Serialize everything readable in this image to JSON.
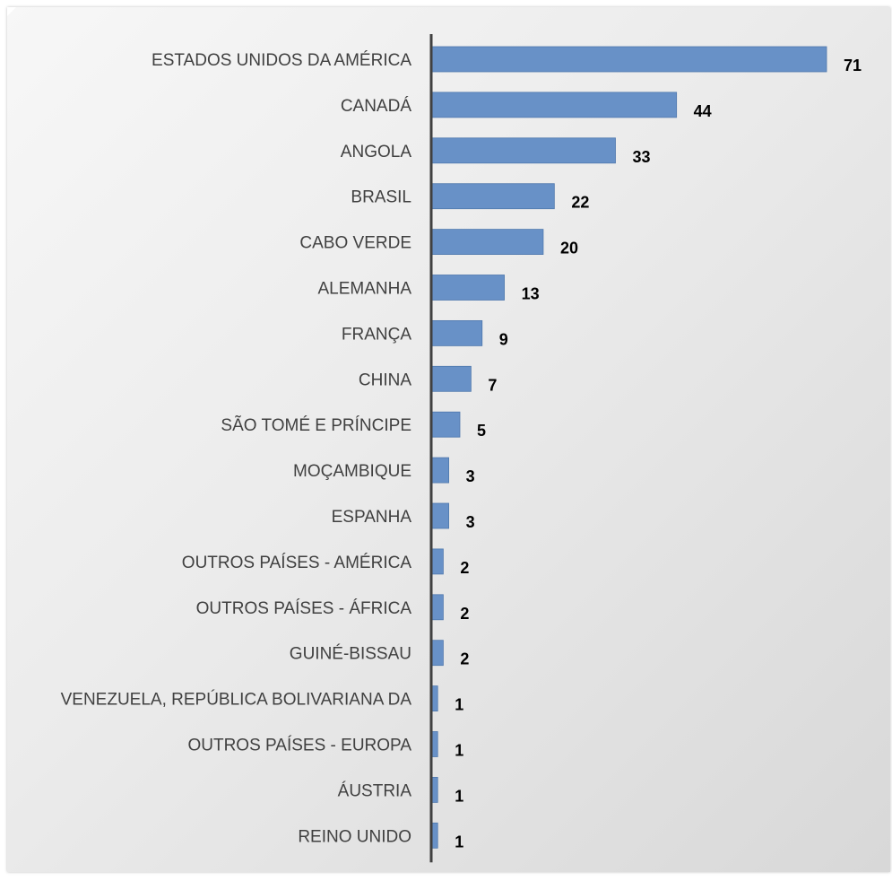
{
  "chart_data": {
    "type": "bar",
    "orientation": "horizontal",
    "title": "",
    "xlabel": "",
    "ylabel": "",
    "categories": [
      "ESTADOS UNIDOS DA AMÉRICA",
      "CANADÁ",
      "ANGOLA",
      "BRASIL",
      "CABO VERDE",
      "ALEMANHA",
      "FRANÇA",
      "CHINA",
      "SÃO TOMÉ E PRÍNCIPE",
      "MOÇAMBIQUE",
      "ESPANHA",
      "OUTROS PAÍSES - AMÉRICA",
      "OUTROS PAÍSES - ÁFRICA",
      "GUINÉ-BISSAU",
      "VENEZUELA, REPÚBLICA BOLIVARIANA DA",
      "OUTROS PAÍSES - EUROPA",
      "ÁUSTRIA",
      "REINO UNIDO"
    ],
    "values": [
      71,
      44,
      33,
      22,
      20,
      13,
      9,
      7,
      5,
      3,
      3,
      2,
      2,
      2,
      1,
      1,
      1,
      1
    ],
    "xlim": [
      0,
      71
    ],
    "grid": false,
    "legend": "none",
    "data_labels": true,
    "colors": {
      "bar": "#6891c7",
      "bar_edge": "#4f78ad",
      "axis": "#404040",
      "category_text": "#404040",
      "value_text": "#000000"
    }
  }
}
